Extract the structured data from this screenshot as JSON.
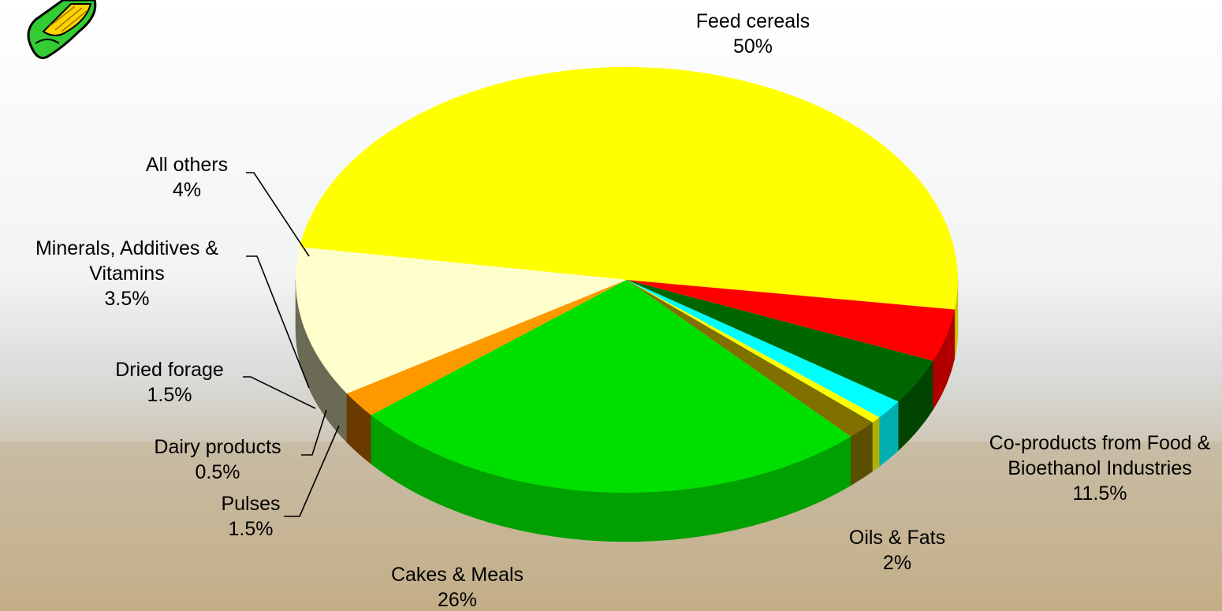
{
  "chart_data": {
    "type": "pie",
    "style": "3d",
    "slices": [
      {
        "label": "Feed cereals",
        "pct_label": "50%",
        "value": 50,
        "color": "#ffff00",
        "side": "#c8c800"
      },
      {
        "label": "Co-products from Food & Bioethanol Industries",
        "pct_label": "11.5%",
        "value": 11.5,
        "color": "#ffffcc",
        "side": "#6b6a55"
      },
      {
        "label": "Oils & Fats",
        "pct_label": "2%",
        "value": 2,
        "color": "#ff9900",
        "side": "#6b3a00"
      },
      {
        "label": "Cakes & Meals",
        "pct_label": "26%",
        "value": 26,
        "color": "#00e000",
        "side": "#00a000"
      },
      {
        "label": "Pulses",
        "pct_label": "1.5%",
        "value": 1.5,
        "color": "#807000",
        "side": "#5a4e00"
      },
      {
        "label": "Dairy products",
        "pct_label": "0.5%",
        "value": 0.5,
        "color": "#ffff00",
        "side": "#b0b000"
      },
      {
        "label": "Dried forage",
        "pct_label": "1.5%",
        "value": 1.5,
        "color": "#00ffff",
        "side": "#00b0b0"
      },
      {
        "label": "Minerals, Additives & Vitamins",
        "pct_label": "3.5%",
        "value": 3.5,
        "color": "#006600",
        "side": "#004400"
      },
      {
        "label": "All others",
        "pct_label": "4%",
        "value": 4,
        "color": "#ff0000",
        "side": "#b00000"
      }
    ]
  }
}
